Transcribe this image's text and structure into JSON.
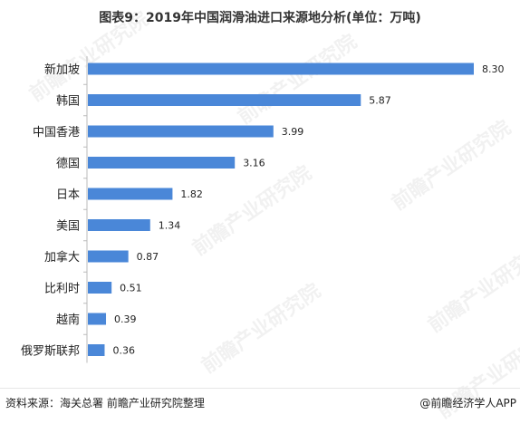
{
  "title": "图表9：2019年中国润滑油进口来源地分析(单位：万吨)",
  "watermark": "前瞻产业研究院",
  "footer": {
    "source": "资料来源：海关总署 前瞻产业研究院整理",
    "brand": "@前瞻经济学人APP"
  },
  "colors": {
    "bar": "#4a87d8",
    "text": "#222222"
  },
  "chart_data": {
    "type": "bar",
    "orientation": "horizontal",
    "categories": [
      "新加坡",
      "韩国",
      "中国香港",
      "德国",
      "日本",
      "美国",
      "加拿大",
      "比利时",
      "越南",
      "俄罗斯联邦"
    ],
    "values": [
      8.3,
      5.87,
      3.99,
      3.16,
      1.82,
      1.34,
      0.87,
      0.51,
      0.39,
      0.36
    ],
    "value_labels": [
      "8.30",
      "5.87",
      "3.99",
      "3.16",
      "1.82",
      "1.34",
      "0.87",
      "0.51",
      "0.39",
      "0.36"
    ],
    "xlim": [
      0,
      8.3
    ],
    "grid": false,
    "legend": "none"
  }
}
